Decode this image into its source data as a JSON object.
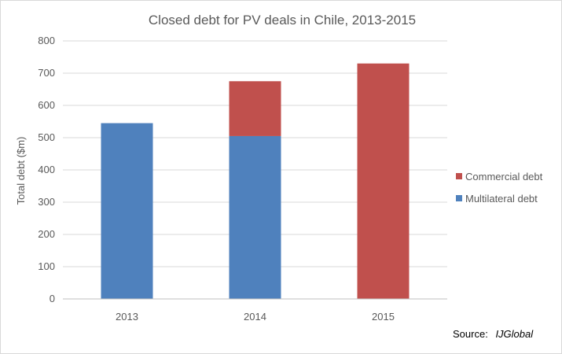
{
  "chart_data": {
    "type": "bar",
    "stacked": true,
    "title": "Closed debt for PV deals in Chile, 2013-2015",
    "xlabel": "",
    "ylabel": "Total debt ($m)",
    "categories": [
      "2013",
      "2014",
      "2015"
    ],
    "series": [
      {
        "name": "Multilateral debt",
        "color": "#4f81bd",
        "values": [
          545,
          505,
          0
        ]
      },
      {
        "name": "Commercial debt",
        "color": "#c0504d",
        "values": [
          0,
          170,
          730
        ]
      }
    ],
    "ylim": [
      0,
      800
    ],
    "yticks": [
      0,
      100,
      200,
      300,
      400,
      500,
      600,
      700,
      800
    ],
    "grid": true,
    "legend_position": "right",
    "legend_order": [
      "Commercial debt",
      "Multilateral debt"
    ]
  },
  "source": {
    "label": "Source:",
    "name": "IJGlobal"
  },
  "colors": {
    "grid": "#d9d9d9",
    "axis": "#bfbfbf",
    "text": "#595959"
  }
}
